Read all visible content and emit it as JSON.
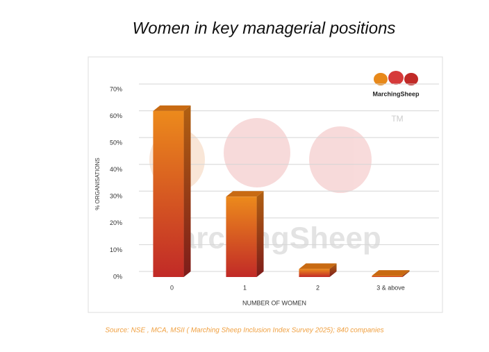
{
  "chart_data": {
    "type": "bar",
    "title": "Women in key managerial positions",
    "categories": [
      "0",
      "1",
      "2",
      "3 & above"
    ],
    "values": [
      62,
      30,
      3,
      0.5
    ],
    "color": "#d9531e",
    "ylim": [
      0,
      70
    ],
    "yticks": [
      {
        "value": 0,
        "label": "0%"
      },
      {
        "value": 10,
        "label": "10%"
      },
      {
        "value": 20,
        "label": "20%"
      },
      {
        "value": 30,
        "label": "30%"
      },
      {
        "value": 40,
        "label": "40%"
      },
      {
        "value": 50,
        "label": "50%"
      },
      {
        "value": 60,
        "label": "60%"
      },
      {
        "value": 70,
        "label": "70%"
      }
    ],
    "grid": true,
    "y_label": "% ORGANISATIONS",
    "x_label": "NUMBER OF WOMEN",
    "brand": "MarchingSheep",
    "trademark": "TM",
    "source": "Source: NSE , MCA, MSII ( Marching Sheep Inclusion Index Survey 2025); 840 companies"
  }
}
